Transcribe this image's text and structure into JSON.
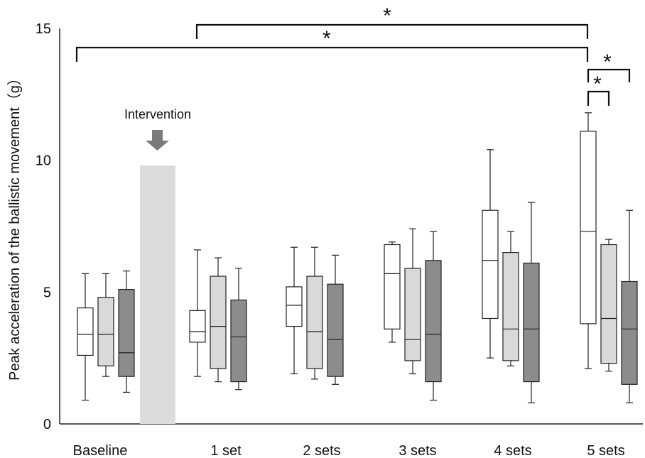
{
  "chart_data": {
    "type": "box",
    "ylabel": "Peak acceleration of the ballistic movement（g）",
    "ylim": [
      0,
      15
    ],
    "yticks": [
      "0",
      "5",
      "10",
      "15"
    ],
    "categories": [
      "Baseline",
      "1 set",
      "2 sets",
      "3 sets",
      "4 sets",
      "5 sets"
    ],
    "colors": [
      "#ffffff",
      "#d9d9d9",
      "#8c8c8c"
    ],
    "groups": [
      [
        {
          "min": 0.9,
          "q1": 2.6,
          "median": 3.4,
          "q3": 4.4,
          "max": 5.7
        },
        {
          "min": 1.8,
          "q1": 2.2,
          "median": 3.4,
          "q3": 4.8,
          "max": 5.7
        },
        {
          "min": 1.2,
          "q1": 1.8,
          "median": 2.7,
          "q3": 5.1,
          "max": 5.8
        }
      ],
      [
        {
          "min": 1.8,
          "q1": 3.1,
          "median": 3.5,
          "q3": 4.3,
          "max": 6.6
        },
        {
          "min": 1.6,
          "q1": 2.1,
          "median": 3.7,
          "q3": 5.6,
          "max": 6.3
        },
        {
          "min": 1.3,
          "q1": 1.6,
          "median": 3.3,
          "q3": 4.7,
          "max": 5.9
        }
      ],
      [
        {
          "min": 1.9,
          "q1": 3.7,
          "median": 4.5,
          "q3": 5.2,
          "max": 6.7
        },
        {
          "min": 1.7,
          "q1": 2.1,
          "median": 3.5,
          "q3": 5.6,
          "max": 6.7
        },
        {
          "min": 1.5,
          "q1": 1.8,
          "median": 3.2,
          "q3": 5.3,
          "max": 6.4
        }
      ],
      [
        {
          "min": 3.1,
          "q1": 3.6,
          "median": 5.7,
          "q3": 6.8,
          "max": 6.9
        },
        {
          "min": 1.9,
          "q1": 2.4,
          "median": 3.2,
          "q3": 5.9,
          "max": 7.4
        },
        {
          "min": 0.9,
          "q1": 1.6,
          "median": 3.4,
          "q3": 6.2,
          "max": 7.3
        }
      ],
      [
        {
          "min": 2.5,
          "q1": 4.0,
          "median": 6.2,
          "q3": 8.1,
          "max": 10.4
        },
        {
          "min": 2.2,
          "q1": 2.4,
          "median": 3.6,
          "q3": 6.5,
          "max": 7.3
        },
        {
          "min": 0.8,
          "q1": 1.6,
          "median": 3.6,
          "q3": 6.1,
          "max": 8.4
        }
      ],
      [
        {
          "min": 2.1,
          "q1": 3.8,
          "median": 7.3,
          "q3": 11.1,
          "max": 11.8
        },
        {
          "min": 2.0,
          "q1": 2.3,
          "median": 4.0,
          "q3": 6.8,
          "max": 7.0
        },
        {
          "min": 0.8,
          "q1": 1.5,
          "median": 3.6,
          "q3": 5.4,
          "max": 8.1
        }
      ]
    ],
    "intervention": {
      "label": "Intervention",
      "bar_height": 9.8
    },
    "significance": [
      {
        "from": "1 set",
        "to": "5 sets",
        "label": "*"
      },
      {
        "from": "Baseline",
        "to": "5 sets",
        "label": "*"
      },
      {
        "from": "5 sets",
        "to": "5 sets",
        "label": "*"
      },
      {
        "from": "5 sets",
        "to": "5 sets",
        "label": "*"
      }
    ]
  }
}
